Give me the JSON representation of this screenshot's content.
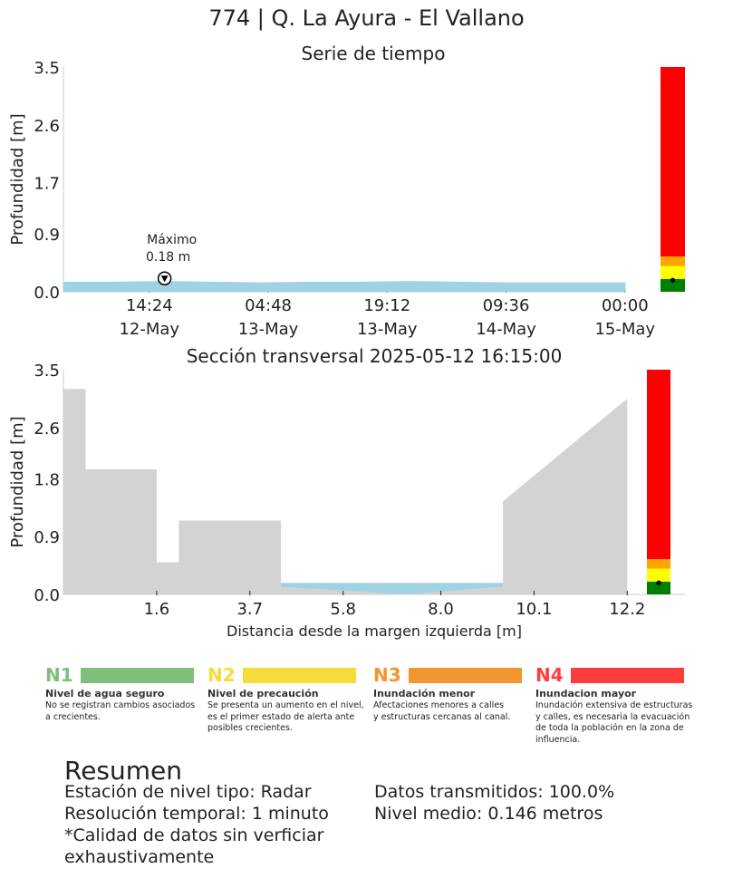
{
  "title": "774 | Q. La Ayura - El Vallano",
  "colors": {
    "water": "#9fd3e3",
    "terrain": "#d3d3d3",
    "n1": "#008000",
    "n2": "#ffff00",
    "n3": "#ffa500",
    "n4": "#ff0000"
  },
  "chart_data": [
    {
      "type": "area",
      "title": "Serie de tiempo",
      "ylabel": "Profundidad [m]",
      "xlabel": "",
      "ylim": [
        0,
        3.5
      ],
      "yticks": [
        "0.0",
        "0.9",
        "1.7",
        "2.6",
        "3.5"
      ],
      "ytick_values": [
        0.0,
        0.9,
        1.7,
        2.6,
        3.5
      ],
      "xticks": [
        {
          "time": "2025-05-12T14:24",
          "line1": "14:24",
          "line2": "12-May"
        },
        {
          "time": "2025-05-13T04:48",
          "line1": "04:48",
          "line2": "13-May"
        },
        {
          "time": "2025-05-13T19:12",
          "line1": "19:12",
          "line2": "13-May"
        },
        {
          "time": "2025-05-14T09:36",
          "line1": "09:36",
          "line2": "14-May"
        },
        {
          "time": "2025-05-15T00:00",
          "line1": "00:00",
          "line2": "15-May"
        }
      ],
      "x_range": [
        "2025-05-12T04:00",
        "2025-05-15T02:00"
      ],
      "series": [
        {
          "x": [
            "2025-05-12T04:00",
            "2025-05-12T10:00",
            "2025-05-12T16:00",
            "2025-05-12T22:00",
            "2025-05-13T04:00",
            "2025-05-13T10:00",
            "2025-05-13T16:00",
            "2025-05-13T22:00",
            "2025-05-14T04:00",
            "2025-05-14T10:00",
            "2025-05-14T16:00",
            "2025-05-14T22:00",
            "2025-05-15T00:00"
          ],
          "values": [
            0.15,
            0.15,
            0.16,
            0.15,
            0.14,
            0.15,
            0.15,
            0.16,
            0.15,
            0.14,
            0.14,
            0.14,
            0.14
          ]
        }
      ],
      "annotation": {
        "label": "Máximo",
        "value_label": "0.18 m",
        "x": "2025-05-12T16:15",
        "y": 0.18
      },
      "level_bar": {
        "n1_top": 0.2,
        "n2_top": 0.4,
        "n3_top": 0.55,
        "n4_top": 3.5,
        "current": 0.18
      }
    },
    {
      "type": "area",
      "title": "Sección transversal 2025-05-12 16:15:00",
      "xlabel": "Distancia desde la margen izquierda [m]",
      "ylabel": "Profundidad [m]",
      "ylim": [
        0,
        3.5
      ],
      "yticks": [
        "0.0",
        "0.9",
        "1.8",
        "2.6",
        "3.5"
      ],
      "ytick_values": [
        0.0,
        0.9,
        1.8,
        2.6,
        3.5
      ],
      "xticks": [
        "1.6",
        "3.7",
        "5.8",
        "8.0",
        "10.1",
        "12.2"
      ],
      "xtick_values": [
        1.6,
        3.7,
        5.8,
        8.0,
        10.1,
        12.2
      ],
      "xlim": [
        -0.5,
        13.5
      ],
      "terrain": {
        "x": [
          -0.5,
          0.0,
          0.0,
          1.6,
          1.6,
          2.1,
          2.1,
          4.4,
          4.4,
          9.4,
          9.4,
          12.2,
          12.2
        ],
        "y": [
          3.2,
          3.2,
          1.95,
          1.95,
          0.5,
          0.5,
          1.15,
          1.15,
          0.15,
          0.15,
          1.45,
          3.05,
          0
        ]
      },
      "water_level": 0.18,
      "level_bar": {
        "n1_top": 0.2,
        "n2_top": 0.4,
        "n3_top": 0.55,
        "n4_top": 3.5,
        "current": 0.18
      }
    }
  ],
  "legend": [
    {
      "code": "N1",
      "name": "Nivel de agua seguro",
      "desc": [
        "No se registran cambios asociados",
        "a crecientes."
      ],
      "color": "#7fbf7b",
      "code_color": "#7fbf7b"
    },
    {
      "code": "N2",
      "name": "Nivel de precaución",
      "desc": [
        "Se presenta un aumento en el nivel,",
        "es el primer estado de alerta ante",
        "posibles crecientes."
      ],
      "color": "#f5dc3c",
      "code_color": "#f5dc3c"
    },
    {
      "code": "N3",
      "name": "Inundación menor",
      "desc": [
        "Afectaciones menores a calles",
        "y estructuras cercanas al canal."
      ],
      "color": "#f39530",
      "code_color": "#f39530"
    },
    {
      "code": "N4",
      "name": "Inundacion mayor",
      "desc": [
        "Inundación extensiva de estructuras",
        "y calles, es necesaria la evacuación",
        "de toda la población en la zona de",
        "influencia."
      ],
      "color": "#ff3c3c",
      "code_color": "#ff3c3c"
    }
  ],
  "summary": {
    "heading": "Resumen",
    "left": [
      "Estación de nivel tipo: Radar",
      "Resolución temporal: 1 minuto",
      "*Calidad de datos sin verficiar",
      "exhaustivamente"
    ],
    "right": [
      "Datos transmitidos: 100.0%",
      "Nivel medio: 0.146 metros"
    ]
  }
}
